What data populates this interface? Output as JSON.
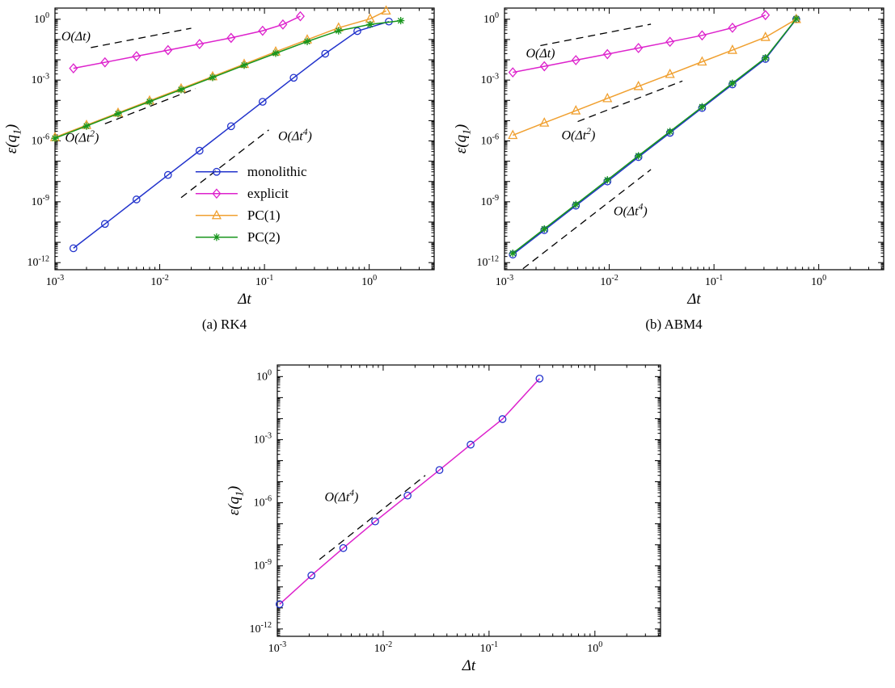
{
  "figure": {
    "background": "#ffffff"
  },
  "axis": {
    "xlabel": "Δt",
    "ylabel": "ε(q_{1})",
    "x_labeled_exponents": [
      -3,
      -2,
      -1,
      0
    ],
    "y_labeled_exponents": [
      0,
      -3,
      -6,
      -9,
      -12
    ],
    "x_tick_labels": [
      "10^-3",
      "10^-2",
      "10^-1",
      "10^0"
    ],
    "y_tick_labels": [
      "10^0",
      "10^-3",
      "10^-6",
      "10^-9",
      "10^-12"
    ]
  },
  "colors": {
    "monolithic": "#2233cc",
    "explicit": "#dd22cc",
    "pc1": "#f0a030",
    "pc2": "#18961d",
    "guide": "#000000",
    "axis": "#000000"
  },
  "chart_data": [
    {
      "id": "a",
      "type": "line",
      "caption": "(a) RK4",
      "xlabel": "Δt",
      "ylabel": "ε(q_{1})",
      "xscale": "log",
      "yscale": "log",
      "xlim": [
        0.001,
        4.2
      ],
      "ylim": [
        4.5e-13,
        3.5
      ],
      "xlim_log10": [
        -3,
        0.62
      ],
      "ylim_log10": [
        -12.35,
        0.55
      ],
      "series": [
        {
          "name": "monolithic",
          "color": "#2233cc",
          "marker": "circle",
          "x": [
            0.0015,
            0.003,
            0.006,
            0.012,
            0.024,
            0.048,
            0.096,
            0.19,
            0.38,
            0.77,
            1.54
          ],
          "y": [
            5.1e-12,
            8.1e-11,
            1.3e-09,
            2.1e-08,
            3.3e-07,
            5.3e-06,
            8.5e-05,
            0.0013,
            0.02,
            0.26,
            0.77
          ]
        },
        {
          "name": "explicit",
          "color": "#dd22cc",
          "marker": "diamond",
          "x": [
            0.0015,
            0.003,
            0.006,
            0.012,
            0.024,
            0.048,
            0.096,
            0.15,
            0.22
          ],
          "y": [
            0.0038,
            0.0075,
            0.015,
            0.03,
            0.06,
            0.12,
            0.27,
            0.55,
            1.4
          ]
        },
        {
          "name": "PC(1)",
          "color": "#f0a030",
          "marker": "triangle",
          "x": [
            0.001,
            0.002,
            0.004,
            0.008,
            0.016,
            0.032,
            0.064,
            0.128,
            0.256,
            0.51,
            1.02,
            1.45
          ],
          "y": [
            1.5e-06,
            6e-06,
            2.4e-05,
            9.6e-05,
            0.00038,
            0.0015,
            0.0061,
            0.025,
            0.098,
            0.38,
            1.05,
            2.6
          ]
        },
        {
          "name": "PC(2)",
          "color": "#18961d",
          "marker": "star",
          "x": [
            0.001,
            0.002,
            0.004,
            0.008,
            0.016,
            0.032,
            0.064,
            0.128,
            0.256,
            0.51,
            1.02,
            2.0
          ],
          "y": [
            1.35e-06,
            5.4e-06,
            2.2e-05,
            8.6e-05,
            0.00034,
            0.00135,
            0.0054,
            0.021,
            0.08,
            0.27,
            0.55,
            0.85
          ]
        }
      ],
      "guides": [
        {
          "label": "O(Δt)",
          "x": [
            0.0022,
            0.02
          ],
          "y": [
            0.04,
            0.36
          ],
          "label_at": [
            0.00115,
            0.09
          ]
        },
        {
          "label": "O(Δt^{2})",
          "x": [
            0.003,
            0.022
          ],
          "y": [
            7e-06,
            0.00038
          ],
          "label_at": [
            0.00125,
            9e-07
          ]
        },
        {
          "label": "O(Δt^{4})",
          "x": [
            0.016,
            0.11
          ],
          "y": [
            1.6e-09,
            3.5e-06
          ],
          "label_at": [
            0.135,
            1.1e-06
          ]
        }
      ],
      "legend": {
        "x": 0.022,
        "y": 3e-08,
        "entries": [
          "monolithic",
          "explicit",
          "PC(1)",
          "PC(2)"
        ]
      }
    },
    {
      "id": "b",
      "type": "line",
      "caption": "(b) ABM4",
      "xlabel": "Δt",
      "ylabel": "ε(q_{1})",
      "xscale": "log",
      "yscale": "log",
      "xlim": [
        0.001,
        4.2
      ],
      "ylim": [
        4.5e-13,
        3.5
      ],
      "xlim_log10": [
        -3,
        0.62
      ],
      "ylim_log10": [
        -12.35,
        0.55
      ],
      "series": [
        {
          "name": "monolithic",
          "color": "#2233cc",
          "marker": "circle",
          "x": [
            0.0012,
            0.0024,
            0.0048,
            0.0096,
            0.019,
            0.038,
            0.077,
            0.15,
            0.31,
            0.61
          ],
          "y": [
            2.5e-12,
            4e-11,
            6.4e-10,
            1e-08,
            1.6e-07,
            2.5e-06,
            4.2e-05,
            0.00061,
            0.011,
            1.0
          ]
        },
        {
          "name": "explicit",
          "color": "#dd22cc",
          "marker": "diamond",
          "x": [
            0.0012,
            0.0024,
            0.0048,
            0.0096,
            0.019,
            0.038,
            0.077,
            0.15,
            0.31
          ],
          "y": [
            0.0024,
            0.0048,
            0.0096,
            0.019,
            0.038,
            0.077,
            0.16,
            0.38,
            1.6
          ]
        },
        {
          "name": "PC(1)",
          "color": "#f0a030",
          "marker": "triangle",
          "x": [
            0.0012,
            0.0024,
            0.0048,
            0.0096,
            0.019,
            0.038,
            0.077,
            0.15,
            0.31,
            0.61
          ],
          "y": [
            1.9e-06,
            7.8e-06,
            3.1e-05,
            0.000125,
            0.00049,
            0.00195,
            0.008,
            0.03,
            0.13,
            1.0
          ]
        },
        {
          "name": "PC(2)",
          "color": "#18961d",
          "marker": "star",
          "x": [
            0.0012,
            0.0024,
            0.0048,
            0.0096,
            0.019,
            0.038,
            0.077,
            0.15,
            0.31,
            0.61
          ],
          "y": [
            2.9e-12,
            4.6e-11,
            7.4e-10,
            1.2e-08,
            1.85e-07,
            2.9e-06,
            4.8e-05,
            0.0007,
            0.0125,
            1.05
          ]
        }
      ],
      "guides": [
        {
          "label": "O(Δt)",
          "x": [
            0.0022,
            0.025
          ],
          "y": [
            0.05,
            0.57
          ],
          "label_at": [
            0.0016,
            0.013
          ]
        },
        {
          "label": "O(Δt^{2})",
          "x": [
            0.005,
            0.05
          ],
          "y": [
            9e-06,
            0.0009
          ],
          "label_at": [
            0.0035,
            1.2e-06
          ]
        },
        {
          "label": "O(Δt^{4})",
          "x": [
            0.0015,
            0.025
          ],
          "y": [
            5e-13,
            3.9e-08
          ],
          "label_at": [
            0.011,
            2.2e-10
          ]
        }
      ],
      "legend": null
    },
    {
      "id": "c",
      "type": "line",
      "caption": "",
      "xlabel": "Δt",
      "ylabel": "ε(q_{1})",
      "xscale": "log",
      "yscale": "log",
      "xlim": [
        0.001,
        4.2
      ],
      "ylim": [
        4.5e-13,
        3.5
      ],
      "xlim_log10": [
        -3,
        0.62
      ],
      "ylim_log10": [
        -12.35,
        0.55
      ],
      "series": [
        {
          "name": "",
          "color": "#dd22cc",
          "marker_color": "#2233cc",
          "marker": "circle",
          "x": [
            0.00105,
            0.0021,
            0.0042,
            0.0084,
            0.017,
            0.034,
            0.067,
            0.134,
            0.3
          ],
          "y": [
            1.5e-11,
            3.5e-10,
            7e-09,
            1.3e-07,
            2.2e-06,
            3.6e-05,
            0.00058,
            0.0095,
            0.8
          ]
        }
      ],
      "guides": [
        {
          "label": "O(Δt^{4})",
          "x": [
            0.0025,
            0.025
          ],
          "y": [
            2e-09,
            2e-05
          ],
          "label_at": [
            0.0028,
            1.2e-06
          ]
        }
      ],
      "legend": null
    }
  ]
}
